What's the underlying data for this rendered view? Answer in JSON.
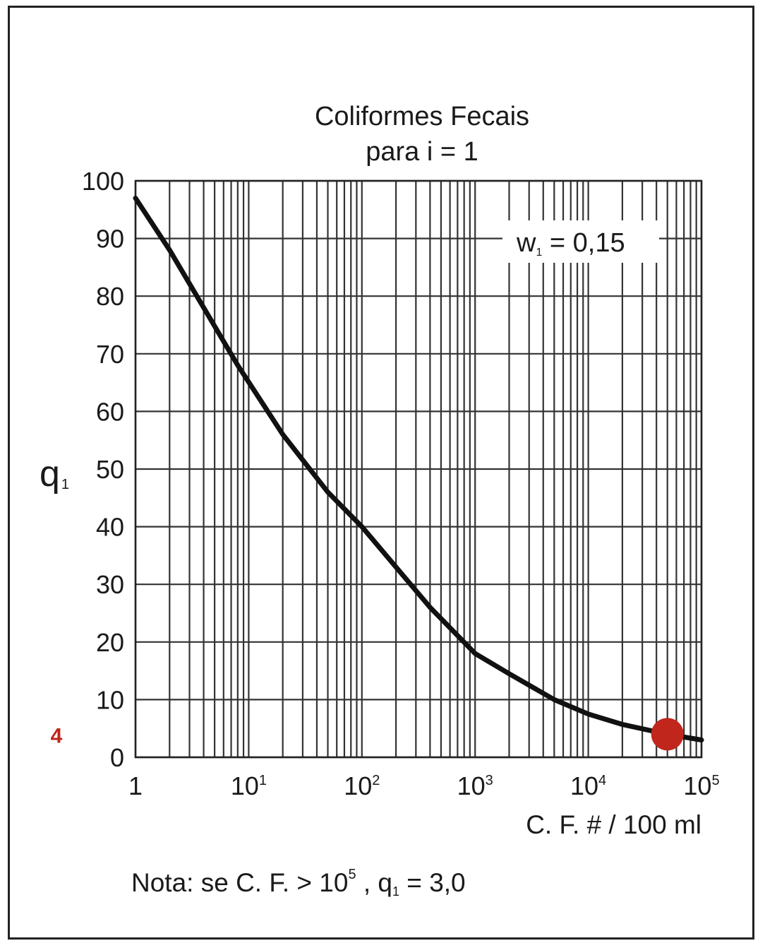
{
  "chart_data": {
    "type": "line",
    "title_line1": "Coliformes Fecais",
    "title_line2": "para i = 1",
    "ylabel": "q",
    "ylabel_sub": "1",
    "xlabel": "C. F. #  /  100 ml",
    "x_scale": "log",
    "xlim": [
      1,
      100000
    ],
    "ylim": [
      0,
      100
    ],
    "y_ticks": [
      0,
      10,
      20,
      30,
      40,
      50,
      60,
      70,
      80,
      90,
      100
    ],
    "x_ticks": [
      {
        "value": 1,
        "base": "1",
        "exp": ""
      },
      {
        "value": 10,
        "base": "10",
        "exp": "1"
      },
      {
        "value": 100,
        "base": "10",
        "exp": "2"
      },
      {
        "value": 1000,
        "base": "10",
        "exp": "3"
      },
      {
        "value": 10000,
        "base": "10",
        "exp": "4"
      },
      {
        "value": 100000,
        "base": "10",
        "exp": "5"
      }
    ],
    "grid": true,
    "series": [
      {
        "x": [
          1,
          2,
          4,
          8,
          20,
          50,
          100,
          200,
          400,
          1000,
          2000,
          5000,
          10000,
          20000,
          50000,
          100000
        ],
        "y": [
          97,
          88,
          78,
          68,
          56,
          46,
          40,
          33,
          26,
          18,
          14.5,
          10,
          7.5,
          5.7,
          4,
          3
        ],
        "color": "#111111"
      }
    ],
    "annotation": {
      "prefix": "w",
      "sub": "1",
      "suffix": " = 0,15"
    },
    "marker": {
      "x": 50000,
      "y": 4,
      "label": "4",
      "color": "#c0261c"
    },
    "note": {
      "prefix": "Nota: se C. F. > 10",
      "sup": "5",
      "mid": " , q",
      "sub": "1",
      "suffix": "  =  3,0"
    }
  }
}
